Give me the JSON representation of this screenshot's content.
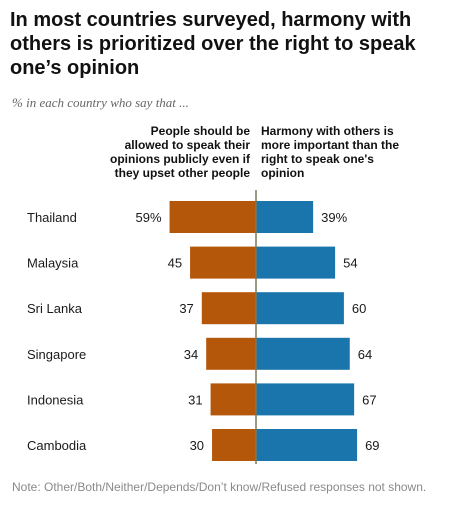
{
  "title": "In most countries surveyed, harmony with others is prioritized over the right to speak one’s opinion",
  "subtitle": "% in each country who say that ...",
  "columns": {
    "left": "People should be allowed to speak their opinions publicly even if they upset other people",
    "right": "Harmony with others is more important than the right to speak one's opinion"
  },
  "note": "Note: Other/Both/Neither/Depends/Don’t know/Refused responses not shown.",
  "colors": {
    "left": "#b5570a",
    "right": "#1a75ad",
    "divider": "#7a7a5a"
  },
  "chart_data": {
    "type": "bar",
    "orientation": "horizontal-diverging",
    "categories": [
      "Thailand",
      "Malaysia",
      "Sri Lanka",
      "Singapore",
      "Indonesia",
      "Cambodia"
    ],
    "series": [
      {
        "name": "People should be allowed to speak their opinions publicly even if they upset other people",
        "values": [
          59,
          45,
          37,
          34,
          31,
          30
        ]
      },
      {
        "name": "Harmony with others is more important than the right to speak one's opinion",
        "values": [
          39,
          54,
          60,
          64,
          67,
          69
        ]
      }
    ],
    "first_label_suffix": "%",
    "grid": false
  }
}
